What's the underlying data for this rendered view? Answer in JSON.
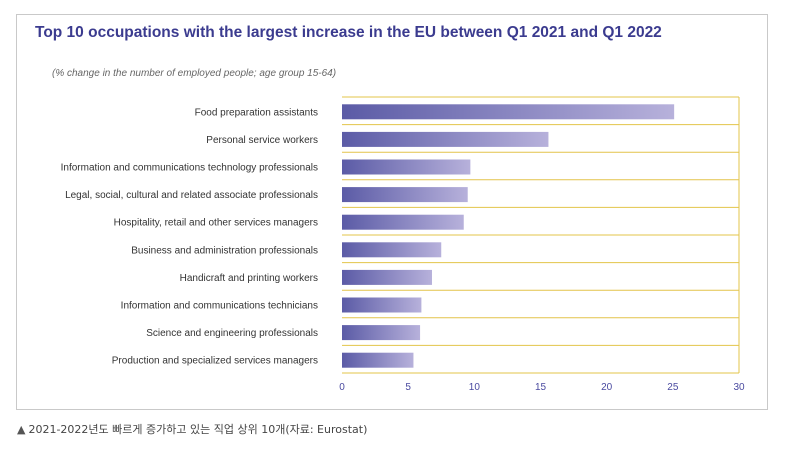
{
  "chart_data": {
    "type": "bar",
    "orientation": "horizontal",
    "title": "Top 10 occupations with the largest increase in the EU between Q1 2021 and Q1 2022",
    "subtitle": "(% change in the number of employed people; age group 15-64)",
    "categories": [
      "Food preparation assistants",
      "Personal service workers",
      "Information and communications technology professionals",
      "Legal, social, cultural and related associate professionals",
      "Hospitality, retail and other services managers",
      "Business and administration professionals",
      "Handicraft and printing workers",
      "Information and communications technicians",
      "Science and engineering professionals",
      "Production and specialized services managers"
    ],
    "values": [
      25.1,
      15.6,
      9.7,
      9.5,
      9.2,
      7.5,
      6.8,
      6.0,
      5.9,
      5.4
    ],
    "xlim": [
      0,
      30
    ],
    "xticks": [
      "0",
      "5",
      "10",
      "15",
      "20",
      "25",
      "30"
    ],
    "grid": true,
    "colors": {
      "bar_start": "#5b5ba6",
      "bar_end": "#b7b1db",
      "grid": "#e3c44a",
      "title": "#3b3b8f",
      "tick": "#4a4aa0"
    }
  },
  "caption": {
    "marker": "▲",
    "text": "2021-2022년도 빠르게 증가하고 있는 직업 상위 10개(자료: Eurostat)"
  }
}
